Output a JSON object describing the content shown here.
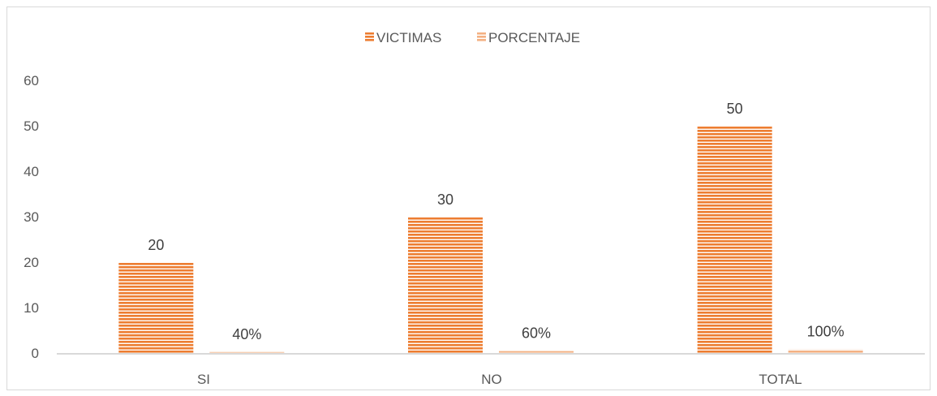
{
  "chart_data": {
    "type": "bar",
    "categories": [
      "SI",
      "NO",
      "TOTAL"
    ],
    "series": [
      {
        "name": "VICTIMAS",
        "values": [
          20,
          30,
          50
        ],
        "data_labels": [
          "20",
          "30",
          "50"
        ],
        "color": "#ed7d31"
      },
      {
        "name": "PORCENTAJE",
        "values": [
          0.4,
          0.6,
          1.0
        ],
        "data_labels": [
          "40%",
          "60%",
          "100%"
        ],
        "color": "#f4b183"
      }
    ],
    "y_ticks": [
      "0",
      "10",
      "20",
      "30",
      "40",
      "50",
      "60"
    ],
    "ylim": [
      0,
      60
    ],
    "grid": false,
    "legend_position": "top-center",
    "bar_pattern": "horizontal-stripes"
  }
}
